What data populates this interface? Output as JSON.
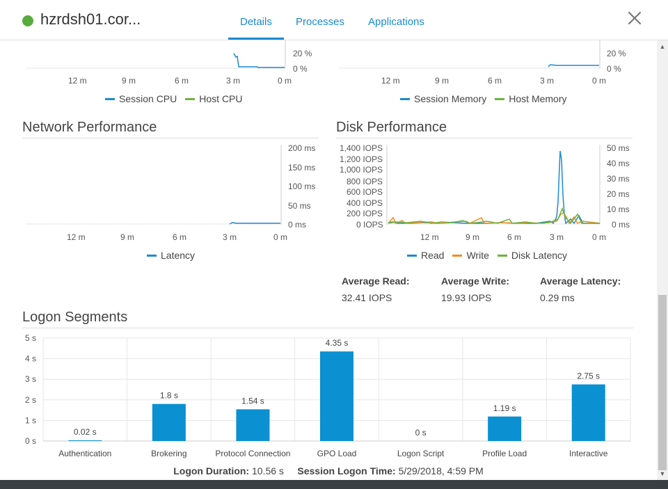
{
  "header": {
    "host_name": "hzrdsh01.cor...",
    "status_color": "#5aab3d",
    "tabs": [
      {
        "label": "Details",
        "active": true
      },
      {
        "label": "Processes",
        "active": false
      },
      {
        "label": "Applications",
        "active": false
      }
    ],
    "close_icon": "close-icon"
  },
  "cpu_chart": {
    "y_ticks": [
      "20 %",
      "0 %"
    ],
    "x_ticks": [
      "12 m",
      "9 m",
      "6 m",
      "3 m",
      "0 m"
    ],
    "legend": [
      {
        "name": "Session CPU",
        "color": "#1b8ad0"
      },
      {
        "name": "Host CPU",
        "color": "#6bb33f"
      }
    ]
  },
  "memory_chart": {
    "y_ticks": [
      "20 %",
      "0 %"
    ],
    "x_ticks": [
      "12 m",
      "9 m",
      "6 m",
      "3 m",
      "0 m"
    ],
    "legend": [
      {
        "name": "Session Memory",
        "color": "#1b8ad0"
      },
      {
        "name": "Host Memory",
        "color": "#6bb33f"
      }
    ]
  },
  "network": {
    "title": "Network Performance",
    "y_ticks": [
      "200 ms",
      "150 ms",
      "100 ms",
      "50 ms",
      "0 ms"
    ],
    "x_ticks": [
      "12 m",
      "9 m",
      "6 m",
      "3 m",
      "0 m"
    ],
    "legend": [
      {
        "name": "Latency",
        "color": "#1b8ad0"
      }
    ]
  },
  "disk": {
    "title": "Disk Performance",
    "y_left_ticks": [
      "1,400 IOPS",
      "1,200 IOPS",
      "1,000 IOPS",
      "800 IOPS",
      "600 IOPS",
      "400 IOPS",
      "200 IOPS",
      "0 IOPS"
    ],
    "y_right_ticks": [
      "50 ms",
      "40 ms",
      "30 ms",
      "20 ms",
      "10 ms",
      "0 ms"
    ],
    "x_ticks": [
      "12 m",
      "9 m",
      "6 m",
      "3 m",
      "0 m"
    ],
    "legend": [
      {
        "name": "Read",
        "color": "#1b8ad0"
      },
      {
        "name": "Write",
        "color": "#f28c1e"
      },
      {
        "name": "Disk Latency",
        "color": "#6bb33f"
      }
    ],
    "stats": [
      {
        "label": "Average Read:",
        "value": "32.41 IOPS"
      },
      {
        "label": "Average Write:",
        "value": "19.93 IOPS"
      },
      {
        "label": "Average Latency:",
        "value": "0.29 ms"
      }
    ]
  },
  "logon": {
    "title": "Logon Segments",
    "footer": {
      "duration_label": "Logon Duration:",
      "duration_value": "10.56 s",
      "session_label": "Session Logon Time:",
      "session_value": "5/29/2018, 4:59 PM"
    }
  },
  "chart_data": {
    "type": "bar",
    "title": "Logon Segments",
    "categories": [
      "Authentication",
      "Brokering",
      "Protocol Connection",
      "GPO Load",
      "Logon Script",
      "Profile Load",
      "Interactive"
    ],
    "values": [
      0.02,
      1.8,
      1.54,
      4.35,
      0,
      1.19,
      2.75
    ],
    "value_labels": [
      "0.02 s",
      "1.8 s",
      "1.54 s",
      "4.35 s",
      "0 s",
      "1.19 s",
      "2.75 s"
    ],
    "y_ticks": [
      "5 s",
      "4 s",
      "3 s",
      "2 s",
      "1 s",
      "0 s"
    ],
    "ylim": [
      0,
      5
    ],
    "xlabel": "",
    "ylabel": "",
    "bar_color": "#0b90d2",
    "grid": true
  }
}
